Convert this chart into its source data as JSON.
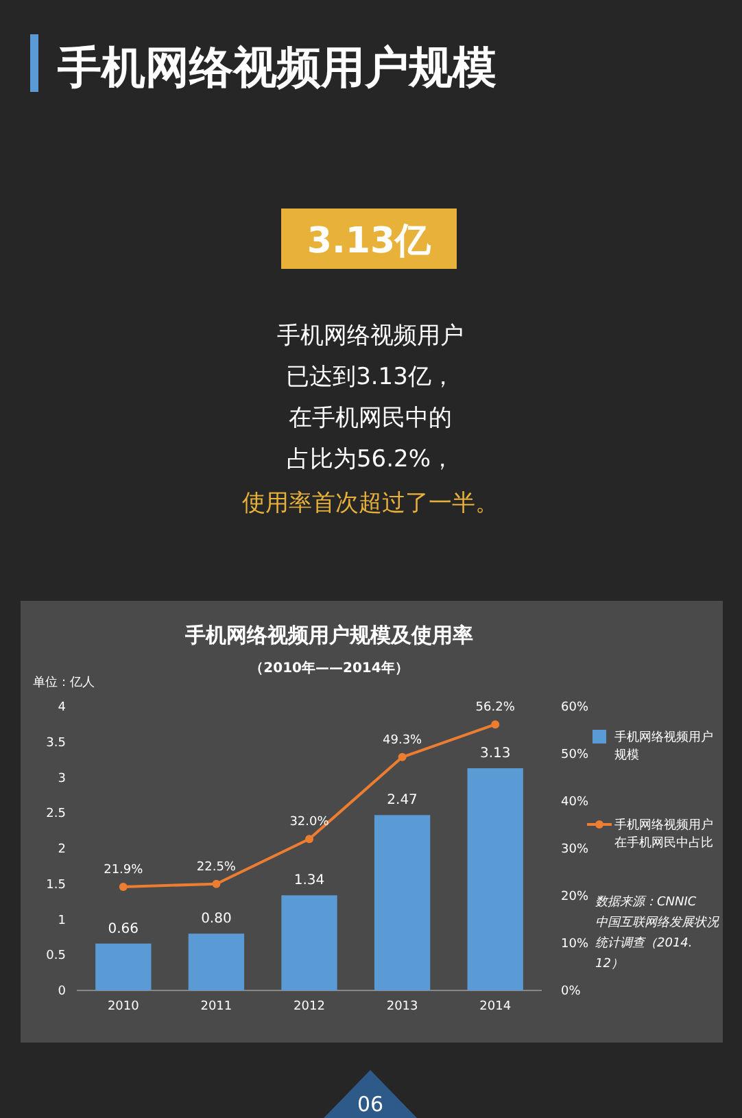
{
  "chart_data": {
    "type": "bar",
    "title": "手机网络视频用户规模及使用率",
    "subtitle": "（2010年——2014年）",
    "ylabel": "单位：亿人",
    "categories": [
      "2010",
      "2011",
      "2012",
      "2013",
      "2014"
    ],
    "series": [
      {
        "name": "手机网络视频用户规模",
        "color": "#5b9bd5",
        "values": [
          0.66,
          0.8,
          1.34,
          2.47,
          3.13
        ],
        "value_labels": [
          "0.66",
          "0.80",
          "1.34",
          "2.47",
          "3.13"
        ]
      },
      {
        "name": "手机网络视频用户在手机网民中占比",
        "type": "line",
        "axis": "y2",
        "color": "#ed7d31",
        "marker": "circle",
        "values": [
          21.9,
          22.5,
          32.0,
          49.3,
          56.2
        ],
        "value_labels": [
          "21.9%",
          "22.5%",
          "32.0%",
          "49.3%",
          "56.2%"
        ]
      }
    ],
    "ylim": [
      0,
      4
    ],
    "yticks": [
      0,
      0.5,
      1,
      1.5,
      2,
      2.5,
      3,
      3.5,
      4
    ],
    "y2lim": [
      0,
      60
    ],
    "y2ticks": [
      {
        "value": 0,
        "label": "0%"
      },
      {
        "value": 10,
        "label": "10%"
      },
      {
        "value": 20,
        "label": "20%"
      },
      {
        "value": 30,
        "label": "30%"
      },
      {
        "value": 40,
        "label": "40%"
      },
      {
        "value": 50,
        "label": "50%"
      },
      {
        "value": 60,
        "label": "60%"
      }
    ],
    "legend": "right",
    "annotations": [
      "手机网络视频用户规模",
      "3.13亿",
      "手机网络视频用户",
      "已达到3.13亿，",
      "在手机网民中的",
      "占比为56.2%，",
      "使用率首次超过了一半。",
      "数据来源：CNNIC中国互联网络发展状况统计调查（2014.12）",
      "06"
    ]
  }
}
